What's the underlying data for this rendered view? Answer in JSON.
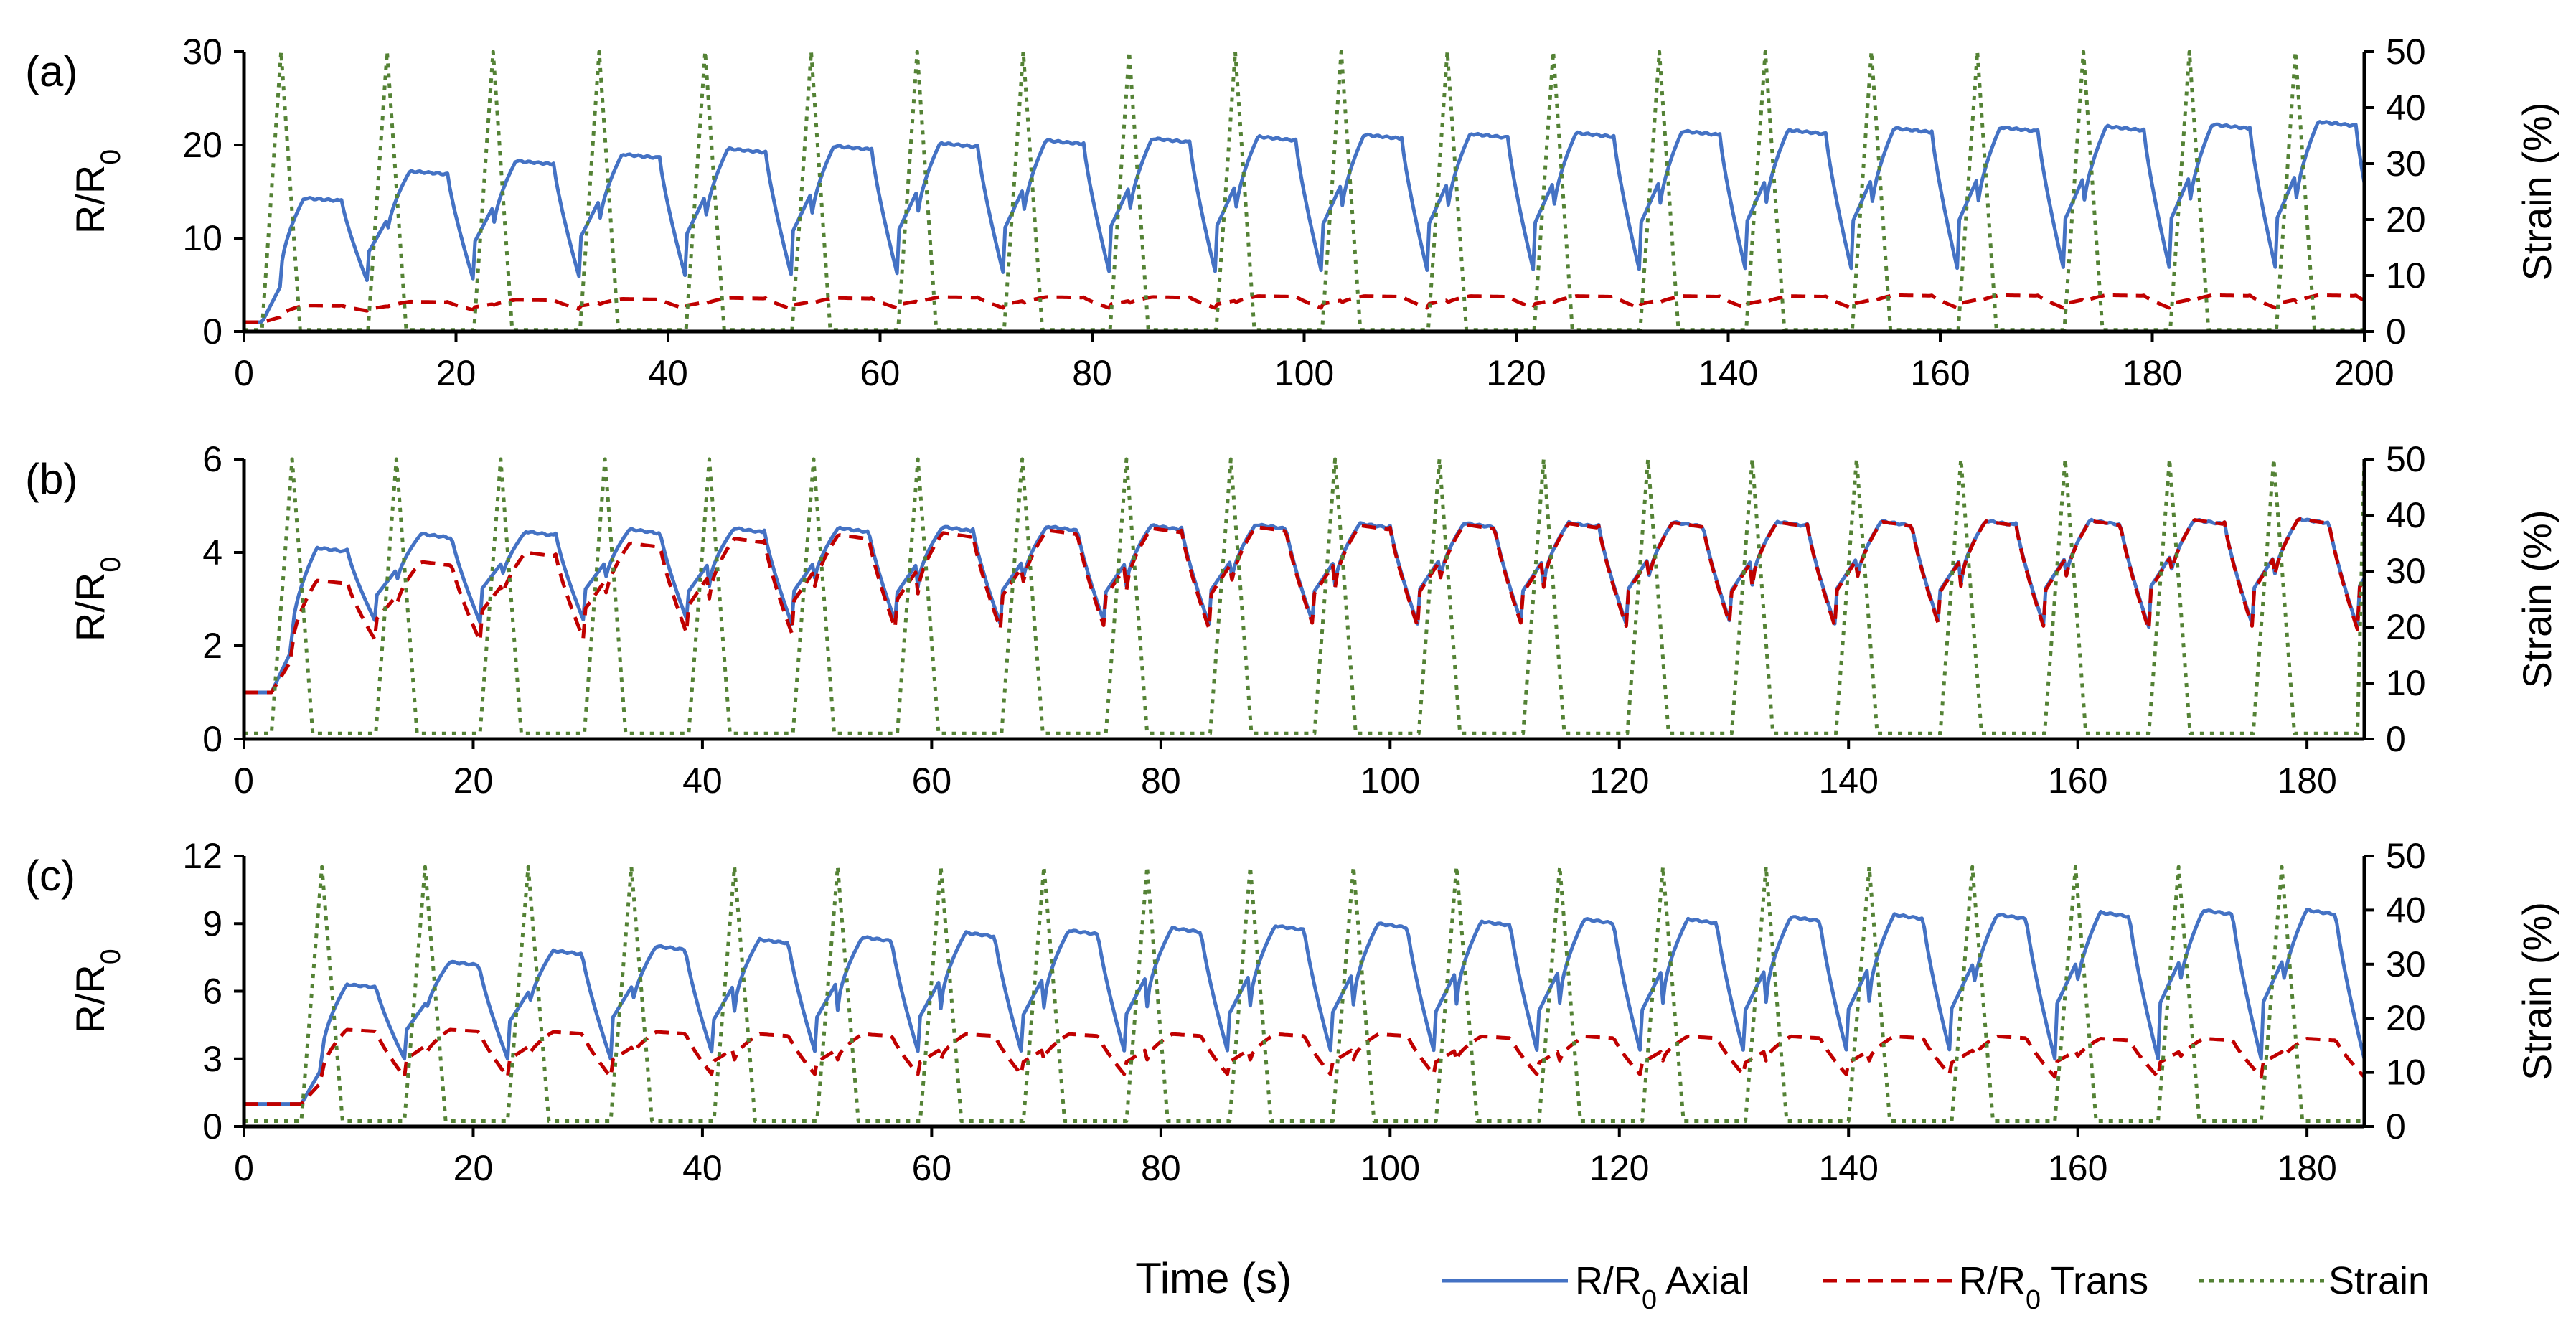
{
  "figure": {
    "xlabel": "Time (s)",
    "legend": [
      {
        "label": "R/R",
        "sub": "0",
        "suffix": " Axial",
        "color": "#4472C4",
        "style": "solid"
      },
      {
        "label": "R/R",
        "sub": "0",
        "suffix": " Trans",
        "color": "#C00000",
        "style": "dashed"
      },
      {
        "label": "Strain",
        "sub": "",
        "suffix": "",
        "color": "#548235",
        "style": "dotted"
      }
    ]
  },
  "chart_data": [
    {
      "panel": "(a)",
      "type": "line",
      "xlim": [
        0,
        200
      ],
      "xticks": [
        0,
        20,
        40,
        60,
        80,
        100,
        120,
        140,
        160,
        180,
        200
      ],
      "ylabel": "R/R",
      "ylabel_sub": "0",
      "ylim": [
        0,
        30
      ],
      "yticks": [
        0,
        10,
        20,
        30
      ],
      "y2label": "Strain (%)",
      "y2lim": [
        0,
        50
      ],
      "y2ticks": [
        0,
        10,
        20,
        30,
        40,
        50
      ],
      "cycle": {
        "first_peak": 3.5,
        "period": 10.0,
        "ramp": 1.8,
        "count": 20
      },
      "series": [
        {
          "name": "R/R0 Axial",
          "axis": "left",
          "color": "#4472C4",
          "style": "solid",
          "plateaus": [
            14.3,
            17.2,
            18.3,
            19.0,
            19.6,
            19.9,
            20.2,
            20.5,
            20.7,
            20.9,
            21.1,
            21.2,
            21.3,
            21.5,
            21.6,
            21.8,
            21.9,
            22.0,
            22.2,
            22.5
          ],
          "valleys": [
            5.2,
            5.3,
            5.5,
            5.6,
            5.7,
            5.8,
            5.9,
            6.0,
            6.0,
            6.1,
            6.1,
            6.2,
            6.2,
            6.3,
            6.3,
            6.3,
            6.4,
            6.4,
            6.4
          ],
          "start": 1.0
        },
        {
          "name": "R/R0 Trans",
          "axis": "left",
          "color": "#C00000",
          "style": "dashed",
          "plateaus": [
            2.8,
            3.2,
            3.4,
            3.5,
            3.6,
            3.6,
            3.7,
            3.7,
            3.7,
            3.8,
            3.8,
            3.8,
            3.8,
            3.8,
            3.8,
            3.9,
            3.9,
            3.9,
            3.9,
            3.9
          ],
          "valleys": [
            2.2,
            2.3,
            2.4,
            2.4,
            2.4,
            2.5,
            2.5,
            2.5,
            2.5,
            2.5,
            2.5,
            2.5,
            2.5,
            2.5,
            2.5,
            2.5,
            2.5,
            2.5,
            2.5
          ],
          "start": 1.0
        },
        {
          "name": "Strain",
          "axis": "right",
          "color": "#548235",
          "style": "dotted",
          "peak": 50,
          "base": 0.3
        }
      ]
    },
    {
      "panel": "(b)",
      "type": "line",
      "xlim": [
        0,
        185
      ],
      "xticks": [
        0,
        20,
        40,
        60,
        80,
        100,
        120,
        140,
        160,
        180
      ],
      "ylabel": "R/R",
      "ylabel_sub": "0",
      "ylim": [
        0,
        6
      ],
      "yticks": [
        0,
        2,
        4,
        6
      ],
      "y2label": "Strain (%)",
      "y2lim": [
        0,
        50
      ],
      "y2ticks": [
        0,
        10,
        20,
        30,
        40,
        50
      ],
      "cycle": {
        "first_peak": 4.2,
        "period": 9.1,
        "ramp": 1.8,
        "count": 20
      },
      "series": [
        {
          "name": "R/R0 Axial",
          "axis": "left",
          "color": "#4472C4",
          "style": "solid",
          "plateaus": [
            4.1,
            4.4,
            4.45,
            4.5,
            4.52,
            4.53,
            4.55,
            4.56,
            4.58,
            4.6,
            4.62,
            4.63,
            4.64,
            4.65,
            4.66,
            4.67,
            4.68,
            4.69,
            4.7,
            4.72
          ],
          "valleys": [
            2.5,
            2.5,
            2.5,
            2.45,
            2.4,
            2.4,
            2.4,
            2.4,
            2.4,
            2.4,
            2.4,
            2.4,
            2.4,
            2.4,
            2.4,
            2.4,
            2.4,
            2.4,
            2.4
          ],
          "start": 1.0
        },
        {
          "name": "R/R0 Trans",
          "axis": "left",
          "color": "#C00000",
          "style": "dashed",
          "plateaus": [
            3.4,
            3.8,
            4.0,
            4.2,
            4.3,
            4.38,
            4.42,
            4.48,
            4.52,
            4.55,
            4.58,
            4.6,
            4.62,
            4.64,
            4.65,
            4.66,
            4.67,
            4.68,
            4.7,
            4.72
          ],
          "valleys": [
            2.1,
            2.1,
            2.1,
            2.15,
            2.2,
            2.25,
            2.3,
            2.3,
            2.3,
            2.35,
            2.35,
            2.35,
            2.35,
            2.35,
            2.35,
            2.35,
            2.35,
            2.35,
            2.35
          ],
          "start": 1.0
        },
        {
          "name": "Strain",
          "axis": "right",
          "color": "#548235",
          "style": "dotted",
          "peak": 50,
          "base": 1.0
        }
      ]
    },
    {
      "panel": "(c)",
      "type": "line",
      "xlim": [
        0,
        185
      ],
      "xticks": [
        0,
        20,
        40,
        60,
        80,
        100,
        120,
        140,
        160,
        180
      ],
      "ylabel": "R/R",
      "ylabel_sub": "0",
      "ylim": [
        0,
        12
      ],
      "yticks": [
        0,
        3,
        6,
        9,
        12
      ],
      "y2label": "Strain (%)",
      "y2lim": [
        0,
        50
      ],
      "y2ticks": [
        0,
        10,
        20,
        30,
        40,
        50
      ],
      "cycle": {
        "first_peak": 6.8,
        "period": 9.0,
        "ramp": 1.8,
        "count": 20
      },
      "series": [
        {
          "name": "R/R0 Axial",
          "axis": "left",
          "color": "#4472C4",
          "style": "solid",
          "plateaus": [
            6.3,
            7.3,
            7.8,
            8.0,
            8.3,
            8.4,
            8.6,
            8.7,
            8.8,
            8.9,
            9.0,
            9.1,
            9.2,
            9.2,
            9.3,
            9.4,
            9.4,
            9.5,
            9.6,
            9.6
          ],
          "valleys": [
            3.0,
            3.0,
            3.0,
            3.0,
            3.0,
            3.0,
            3.0,
            3.0,
            3.0,
            3.0,
            3.0,
            3.0,
            3.0,
            3.0,
            3.0,
            3.0,
            3.0,
            3.0,
            3.0
          ],
          "start": 1.0
        },
        {
          "name": "R/R0 Trans",
          "axis": "left",
          "color": "#C00000",
          "style": "dashed",
          "plateaus": [
            4.3,
            4.3,
            4.2,
            4.2,
            4.1,
            4.1,
            4.1,
            4.1,
            4.1,
            4.1,
            4.1,
            4.0,
            4.0,
            4.0,
            4.0,
            4.0,
            4.0,
            3.9,
            3.9,
            3.9
          ],
          "valleys": [
            2.2,
            2.2,
            2.2,
            2.2,
            2.2,
            2.2,
            2.2,
            2.2,
            2.2,
            2.2,
            2.2,
            2.2,
            2.2,
            2.2,
            2.2,
            2.2,
            2.2,
            2.2,
            2.2
          ],
          "start": 1.0
        },
        {
          "name": "Strain",
          "axis": "right",
          "color": "#548235",
          "style": "dotted",
          "peak": 48,
          "base": 1.0
        }
      ]
    }
  ]
}
